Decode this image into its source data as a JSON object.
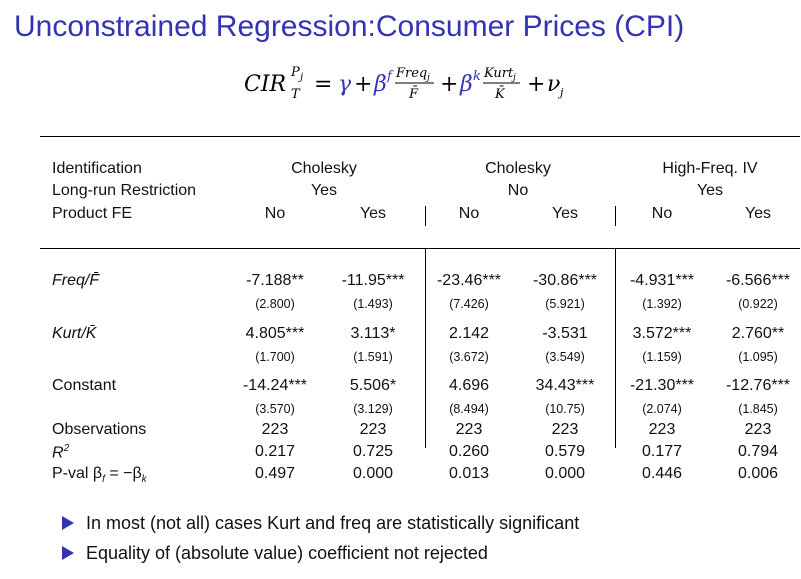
{
  "title": "Unconstrained Regression:Consumer Prices (CPI)",
  "equation": {
    "lhs": "CIR",
    "lhs_sup": "P",
    "lhs_sup_sub": "j",
    "lhs_sub": "T",
    "eq": "=",
    "gamma": "γ",
    "plus1": "+",
    "beta_f": "β",
    "beta_f_sup": "f",
    "freq_num": "Freq",
    "freq_num_sub": "j",
    "freq_den": "F̄",
    "plus2": "+",
    "beta_k": "β",
    "beta_k_sup": "k",
    "kurt_num": "Kurt",
    "kurt_num_sub": "j",
    "kurt_den": "K̄",
    "plus3": "+",
    "nu": "ν",
    "nu_sub": "j",
    "color_greek": "#3333b3"
  },
  "table": {
    "header_labels": [
      "Identification",
      "Long-run Restriction",
      "Product FE"
    ],
    "groups": [
      {
        "identification": "Cholesky",
        "restriction": "Yes"
      },
      {
        "identification": "Cholesky",
        "restriction": "No"
      },
      {
        "identification": "High-Freq. IV",
        "restriction": "Yes"
      }
    ],
    "fe": [
      "No",
      "Yes",
      "No",
      "Yes",
      "No",
      "Yes"
    ],
    "rows": [
      {
        "label": "Freq/F̄",
        "values": [
          "-7.188**",
          "-11.95***",
          "-23.46***",
          "-30.86***",
          "-4.931***",
          "-6.566***"
        ],
        "se": [
          "(2.800)",
          "(1.493)",
          "(7.426)",
          "(5.921)",
          "(1.392)",
          "(0.922)"
        ]
      },
      {
        "label": "Kurt/K̄",
        "values": [
          "4.805***",
          "3.113*",
          "2.142",
          "-3.531",
          "3.572***",
          "2.760**"
        ],
        "se": [
          "(1.700)",
          "(1.591)",
          "(3.672)",
          "(3.549)",
          "(1.159)",
          "(1.095)"
        ]
      },
      {
        "label": "Constant",
        "values": [
          "-14.24***",
          "5.506*",
          "4.696",
          "34.43***",
          "-21.30***",
          "-12.76***"
        ],
        "se": [
          "(3.570)",
          "(3.129)",
          "(8.494)",
          "(10.75)",
          "(2.074)",
          "(1.845)"
        ]
      }
    ],
    "observations": {
      "label": "Observations",
      "values": [
        "223",
        "223",
        "223",
        "223",
        "223",
        "223"
      ]
    },
    "r2": {
      "label": "R",
      "label_sup": "2",
      "values": [
        "0.217",
        "0.725",
        "0.260",
        "0.579",
        "0.177",
        "0.794"
      ]
    },
    "pval": {
      "label": "P-val β",
      "label_sub_f": "f",
      "label_eq": " = −β",
      "label_sub_k": "k",
      "values": [
        "0.497",
        "0.000",
        "0.013",
        "0.000",
        "0.446",
        "0.006"
      ]
    }
  },
  "bullets": [
    "In most (not all) cases Kurt and freq are statistically significant",
    "Equality of (absolute value) coefficient not rejected"
  ],
  "bullet_icon": "triangle-bullet-icon"
}
